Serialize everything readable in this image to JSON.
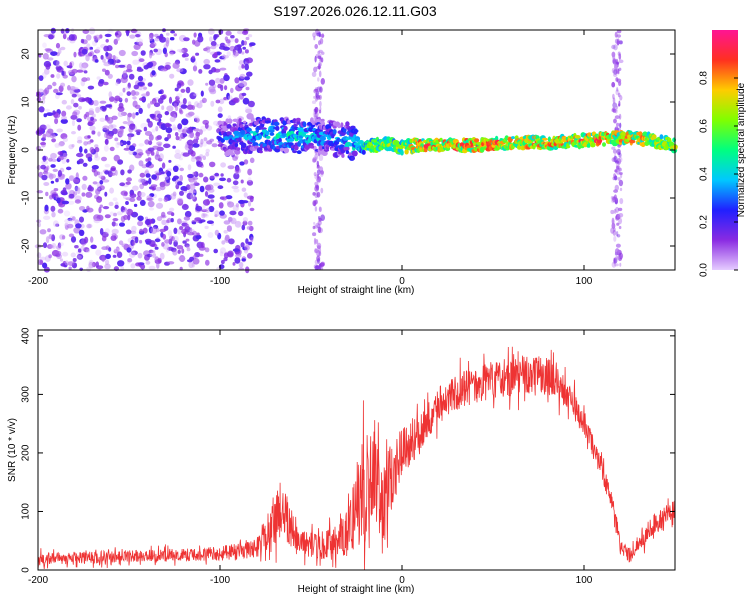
{
  "figure_title": "S197.2026.026.12.11.G03",
  "chart_data": [
    {
      "type": "heatmap",
      "title": "S197.2026.026.12.11.G03",
      "xlabel": "Height of straight line (km)",
      "ylabel": "Frequency (Hz)",
      "xlim": [
        -200,
        150
      ],
      "ylim": [
        -25,
        25
      ],
      "xticks": [
        -200,
        -100,
        0,
        100
      ],
      "yticks": [
        -20,
        -10,
        0,
        10,
        20
      ],
      "colorbar": {
        "label": "Normalized spectral amplitude",
        "range": [
          0,
          1
        ],
        "ticks": [
          0.0,
          0.2,
          0.4,
          0.6,
          0.8
        ],
        "colormap": [
          "#e6ccff",
          "#8a2be2",
          "#2020ff",
          "#00c8ff",
          "#00ff80",
          "#80ff00",
          "#ffcc00",
          "#ff3020",
          "#ff1493"
        ]
      },
      "signal_track": {
        "x": [
          -100,
          -80,
          -60,
          -40,
          -30,
          -20,
          -10,
          0,
          10,
          20,
          40,
          60,
          80,
          100,
          120,
          130,
          150
        ],
        "freq": [
          2.5,
          3,
          3,
          2.5,
          2,
          0.5,
          1.5,
          0.5,
          1,
          1,
          1,
          1.5,
          1.5,
          2,
          2.5,
          2.5,
          1
        ],
        "amplitude": [
          0.3,
          0.45,
          0.5,
          0.4,
          0.45,
          0.6,
          0.7,
          0.7,
          0.85,
          0.9,
          0.9,
          0.85,
          0.85,
          0.9,
          0.85,
          0.8,
          0.7
        ]
      },
      "noise_region": {
        "x_range": [
          -200,
          -82
        ],
        "freq_range": [
          -25,
          25
        ],
        "amplitude_max": 0.2
      },
      "interference_lines_x": [
        -46,
        118
      ]
    },
    {
      "type": "line",
      "xlabel": "Height of straight line (km)",
      "ylabel": "SNR (10 * v/v)",
      "xlim": [
        -200,
        150
      ],
      "ylim": [
        0,
        410
      ],
      "xticks": [
        -200,
        -100,
        0,
        100
      ],
      "yticks": [
        0,
        100,
        200,
        300,
        400
      ],
      "series": [
        {
          "name": "SNR",
          "color": "#ee3333",
          "x": [
            -200,
            -180,
            -160,
            -140,
            -120,
            -100,
            -90,
            -80,
            -75,
            -70,
            -66,
            -62,
            -55,
            -45,
            -35,
            -30,
            -27,
            -25,
            -22,
            -20,
            -17,
            -15,
            -12,
            -10,
            -8,
            -5,
            0,
            5,
            10,
            15,
            20,
            25,
            30,
            40,
            50,
            60,
            70,
            80,
            85,
            90,
            95,
            100,
            105,
            110,
            115,
            118,
            120,
            125,
            130,
            140,
            150
          ],
          "y": [
            18,
            20,
            22,
            24,
            26,
            28,
            32,
            40,
            55,
            90,
            110,
            80,
            45,
            42,
            50,
            70,
            90,
            110,
            140,
            120,
            130,
            150,
            120,
            110,
            140,
            160,
            200,
            220,
            240,
            260,
            280,
            295,
            305,
            315,
            325,
            330,
            335,
            330,
            320,
            300,
            280,
            250,
            210,
            170,
            120,
            80,
            40,
            25,
            50,
            80,
            100
          ],
          "noise": [
            12,
            12,
            12,
            12,
            12,
            14,
            16,
            20,
            30,
            50,
            60,
            45,
            25,
            25,
            35,
            50,
            65,
            80,
            110,
            90,
            100,
            110,
            90,
            80,
            80,
            70,
            50,
            45,
            40,
            35,
            35,
            35,
            35,
            35,
            35,
            38,
            38,
            36,
            32,
            30,
            28,
            25,
            22,
            20,
            18,
            15,
            12,
            14,
            20,
            22,
            25
          ]
        }
      ]
    }
  ]
}
